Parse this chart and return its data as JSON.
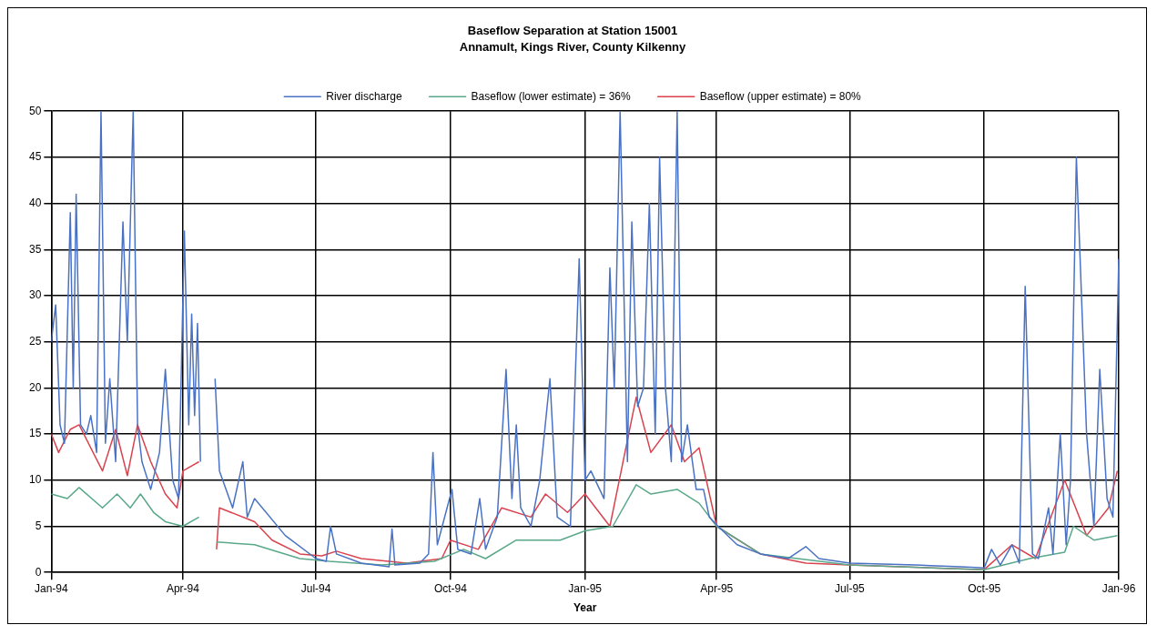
{
  "chart_data": {
    "type": "line",
    "title": "Baseflow Separation at Station 15001",
    "subtitle": "Annamult, Kings River, County Kilkenny",
    "xlabel": "Year",
    "xlim": [
      "1994-01-01",
      "1996-01-01"
    ],
    "xticks": [
      {
        "value": "1994-01-01",
        "label": "Jan-94"
      },
      {
        "value": "1994-04-01",
        "label": "Apr-94"
      },
      {
        "value": "1994-07-01",
        "label": "Jul-94"
      },
      {
        "value": "1994-10-01",
        "label": "Oct-94"
      },
      {
        "value": "1995-01-01",
        "label": "Jan-95"
      },
      {
        "value": "1995-04-01",
        "label": "Apr-95"
      },
      {
        "value": "1995-07-01",
        "label": "Jul-95"
      },
      {
        "value": "1995-10-01",
        "label": "Oct-95"
      },
      {
        "value": "1996-01-01",
        "label": "Jan-96"
      }
    ],
    "ylim": [
      0,
      50
    ],
    "yticks": [
      0,
      5,
      10,
      15,
      20,
      25,
      30,
      35,
      40,
      45,
      50
    ],
    "grid": true,
    "legend": "top",
    "marker": "none",
    "line_style": "solid",
    "series": [
      {
        "name": "River discharge",
        "color": "#4a72c4",
        "x": [
          "1994-01-01",
          "1994-01-04",
          "1994-01-07",
          "1994-01-10",
          "1994-01-14",
          "1994-01-16",
          "1994-01-18",
          "1994-01-21",
          "1994-01-25",
          "1994-01-28",
          "1994-02-01",
          "1994-02-04",
          "1994-02-07",
          "1994-02-10",
          "1994-02-14",
          "1994-02-19",
          "1994-02-22",
          "1994-02-26",
          "1994-03-01",
          "1994-03-04",
          "1994-03-10",
          "1994-03-16",
          "1994-03-20",
          "1994-03-25",
          "1994-03-29",
          "1994-04-02",
          "1994-04-05",
          "1994-04-07",
          "1994-04-09",
          "1994-04-11",
          "1994-04-13",
          "1994-04-18",
          "1994-04-23",
          "1994-04-26",
          "1994-05-05",
          "1994-05-12",
          "1994-05-15",
          "1994-05-20",
          "1994-06-10",
          "1994-07-01",
          "1994-07-08",
          "1994-07-11",
          "1994-07-15",
          "1994-08-01",
          "1994-08-20",
          "1994-08-22",
          "1994-08-24",
          "1994-09-10",
          "1994-09-16",
          "1994-09-19",
          "1994-09-22",
          "1994-10-02",
          "1994-10-06",
          "1994-10-15",
          "1994-10-21",
          "1994-10-25",
          "1994-11-02",
          "1994-11-08",
          "1994-11-12",
          "1994-11-15",
          "1994-11-18",
          "1994-11-25",
          "1994-12-01",
          "1994-12-08",
          "1994-12-13",
          "1994-12-22",
          "1994-12-28",
          "1995-01-01",
          "1995-01-05",
          "1995-01-14",
          "1995-01-18",
          "1995-01-21",
          "1995-01-25",
          "1995-01-30",
          "1995-02-02",
          "1995-02-06",
          "1995-02-10",
          "1995-02-14",
          "1995-02-18",
          "1995-02-21",
          "1995-02-25",
          "1995-03-01",
          "1995-03-05",
          "1995-03-08",
          "1995-03-12",
          "1995-03-18",
          "1995-03-23",
          "1995-03-27",
          "1995-04-02",
          "1995-04-15",
          "1995-05-01",
          "1995-05-20",
          "1995-06-01",
          "1995-06-10",
          "1995-07-01",
          "1995-08-15",
          "1995-09-15",
          "1995-10-01",
          "1995-10-06",
          "1995-10-12",
          "1995-10-20",
          "1995-10-25",
          "1995-10-29",
          "1995-11-03",
          "1995-11-07",
          "1995-11-14",
          "1995-11-17",
          "1995-11-22",
          "1995-11-26",
          "1995-11-29",
          "1995-12-03",
          "1995-12-10",
          "1995-12-15",
          "1995-12-19",
          "1995-12-24",
          "1995-12-28",
          "1996-01-01"
        ],
        "values": [
          25,
          29,
          16,
          14,
          39,
          20,
          41,
          16,
          15,
          17,
          13,
          50,
          14,
          21,
          12,
          38,
          25,
          50,
          16,
          12,
          9,
          13,
          22,
          10,
          8,
          37,
          16,
          28,
          17,
          27,
          12,
          null,
          21,
          11,
          7,
          12,
          6,
          8,
          4,
          1.5,
          1.2,
          5,
          2,
          1,
          0.6,
          4.7,
          0.8,
          1,
          2,
          13,
          3,
          9,
          2.5,
          2,
          8,
          2.5,
          6,
          22,
          8,
          16,
          7,
          5,
          10,
          21,
          6,
          5,
          34,
          10,
          11,
          8,
          33,
          20,
          50,
          12,
          38,
          18,
          20,
          40,
          15,
          45,
          20,
          12,
          50,
          12,
          16,
          9,
          9,
          6,
          5,
          3,
          2,
          1.5,
          2.8,
          1.5,
          1,
          0.8,
          0.6,
          0.5,
          2.5,
          0.8,
          3,
          1,
          31,
          2,
          1.5,
          7,
          2,
          15,
          3,
          10,
          45,
          15,
          5,
          22,
          8,
          6,
          34
        ]
      },
      {
        "name": "Baseflow (lower estimate) = 36%",
        "color": "#5aa88a",
        "x": [
          "1994-01-01",
          "1994-01-12",
          "1994-01-20",
          "1994-02-05",
          "1994-02-15",
          "1994-02-24",
          "1994-03-03",
          "1994-03-12",
          "1994-03-20",
          "1994-04-01",
          "1994-04-12",
          "1994-04-18",
          "1994-04-24",
          "1994-05-20",
          "1994-06-20",
          "1994-07-10",
          "1994-08-15",
          "1994-09-20",
          "1994-10-10",
          "1994-10-25",
          "1994-11-15",
          "1994-12-15",
          "1995-01-01",
          "1995-01-20",
          "1995-02-05",
          "1995-02-15",
          "1995-03-05",
          "1995-03-20",
          "1995-04-01",
          "1995-05-01",
          "1995-07-01",
          "1995-10-01",
          "1995-11-01",
          "1995-11-25",
          "1995-12-01",
          "1995-12-15",
          "1995-12-31"
        ],
        "values": [
          8.5,
          8,
          9.2,
          7,
          8.5,
          7,
          8.5,
          6.5,
          5.5,
          5,
          6,
          null,
          3.3,
          3,
          1.5,
          1.2,
          0.8,
          1.2,
          2.5,
          1.5,
          3.5,
          3.5,
          4.5,
          5,
          9.5,
          8.5,
          9,
          7.5,
          5,
          2,
          0.8,
          0.3,
          1.5,
          2.2,
          5,
          3.5,
          4
        ]
      },
      {
        "name": "Baseflow (upper estimate) = 80%",
        "color": "#d9434e",
        "x": [
          "1994-01-01",
          "1994-01-06",
          "1994-01-14",
          "1994-01-20",
          "1994-02-05",
          "1994-02-14",
          "1994-02-22",
          "1994-03-01",
          "1994-03-10",
          "1994-03-20",
          "1994-03-28",
          "1994-04-01",
          "1994-04-12",
          "1994-04-18",
          "1994-04-24",
          "1994-04-26",
          "1994-05-20",
          "1994-06-01",
          "1994-06-20",
          "1994-07-05",
          "1994-07-15",
          "1994-08-01",
          "1994-09-01",
          "1994-09-25",
          "1994-10-01",
          "1994-10-20",
          "1994-11-05",
          "1994-11-25",
          "1994-12-05",
          "1994-12-20",
          "1995-01-01",
          "1995-01-18",
          "1995-02-05",
          "1995-02-15",
          "1995-03-01",
          "1995-03-10",
          "1995-03-20",
          "1995-04-01",
          "1995-05-01",
          "1995-06-01",
          "1995-07-01",
          "1995-10-01",
          "1995-10-20",
          "1995-11-05",
          "1995-11-25",
          "1995-12-10",
          "1995-12-25",
          "1995-12-31"
        ],
        "values": [
          15,
          13,
          15.5,
          16,
          11,
          15.5,
          10.5,
          16,
          12,
          8.5,
          7,
          11,
          12,
          null,
          2.5,
          7,
          5.5,
          3.5,
          2,
          1.8,
          2.3,
          1.5,
          1,
          1.5,
          3.5,
          2.5,
          7,
          6,
          8.5,
          6.5,
          8.5,
          5,
          19,
          13,
          16,
          12,
          13.5,
          5,
          2,
          1,
          0.8,
          0.3,
          3,
          1.5,
          10,
          4,
          7,
          11
        ]
      }
    ]
  }
}
